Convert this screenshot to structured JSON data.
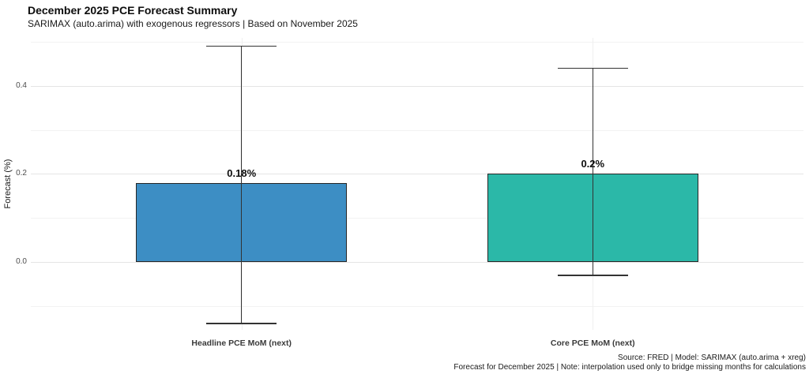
{
  "chart_data": {
    "type": "bar",
    "title": "December 2025 PCE Forecast Summary",
    "subtitle": "SARIMAX (auto.arima) with exogenous regressors | Based on November 2025",
    "ylabel": "Forecast (%)",
    "xlabel": "",
    "categories": [
      "Headline PCE MoM (next)",
      "Core PCE MoM (next)"
    ],
    "series": [
      {
        "name": "forecast",
        "values": [
          0.18,
          0.2
        ]
      }
    ],
    "value_labels": [
      "0.18%",
      "0.2%"
    ],
    "error_bars": {
      "low": [
        -0.14,
        -0.03
      ],
      "high": [
        0.49,
        0.44
      ]
    },
    "bar_colors": [
      "#3d8ec4",
      "#2bb8a8"
    ],
    "bar_border_color": "#262626",
    "errorbar_color": "#333333",
    "ylim": [
      -0.154,
      0.509
    ],
    "yticks": [
      0.0,
      0.2,
      0.4
    ],
    "ytick_labels": [
      "0.0",
      "0.2",
      "0.4"
    ],
    "minor_yticks": [
      -0.1,
      0.1,
      0.3,
      0.5
    ],
    "grid": "horizontal major + minor, vertical at category centers",
    "legend": "none",
    "caption": [
      "Source: FRED | Model: SARIMAX (auto.arima + xreg)",
      "Forecast for December 2025 | Note: interpolation used only to bridge missing months for calculations"
    ]
  }
}
